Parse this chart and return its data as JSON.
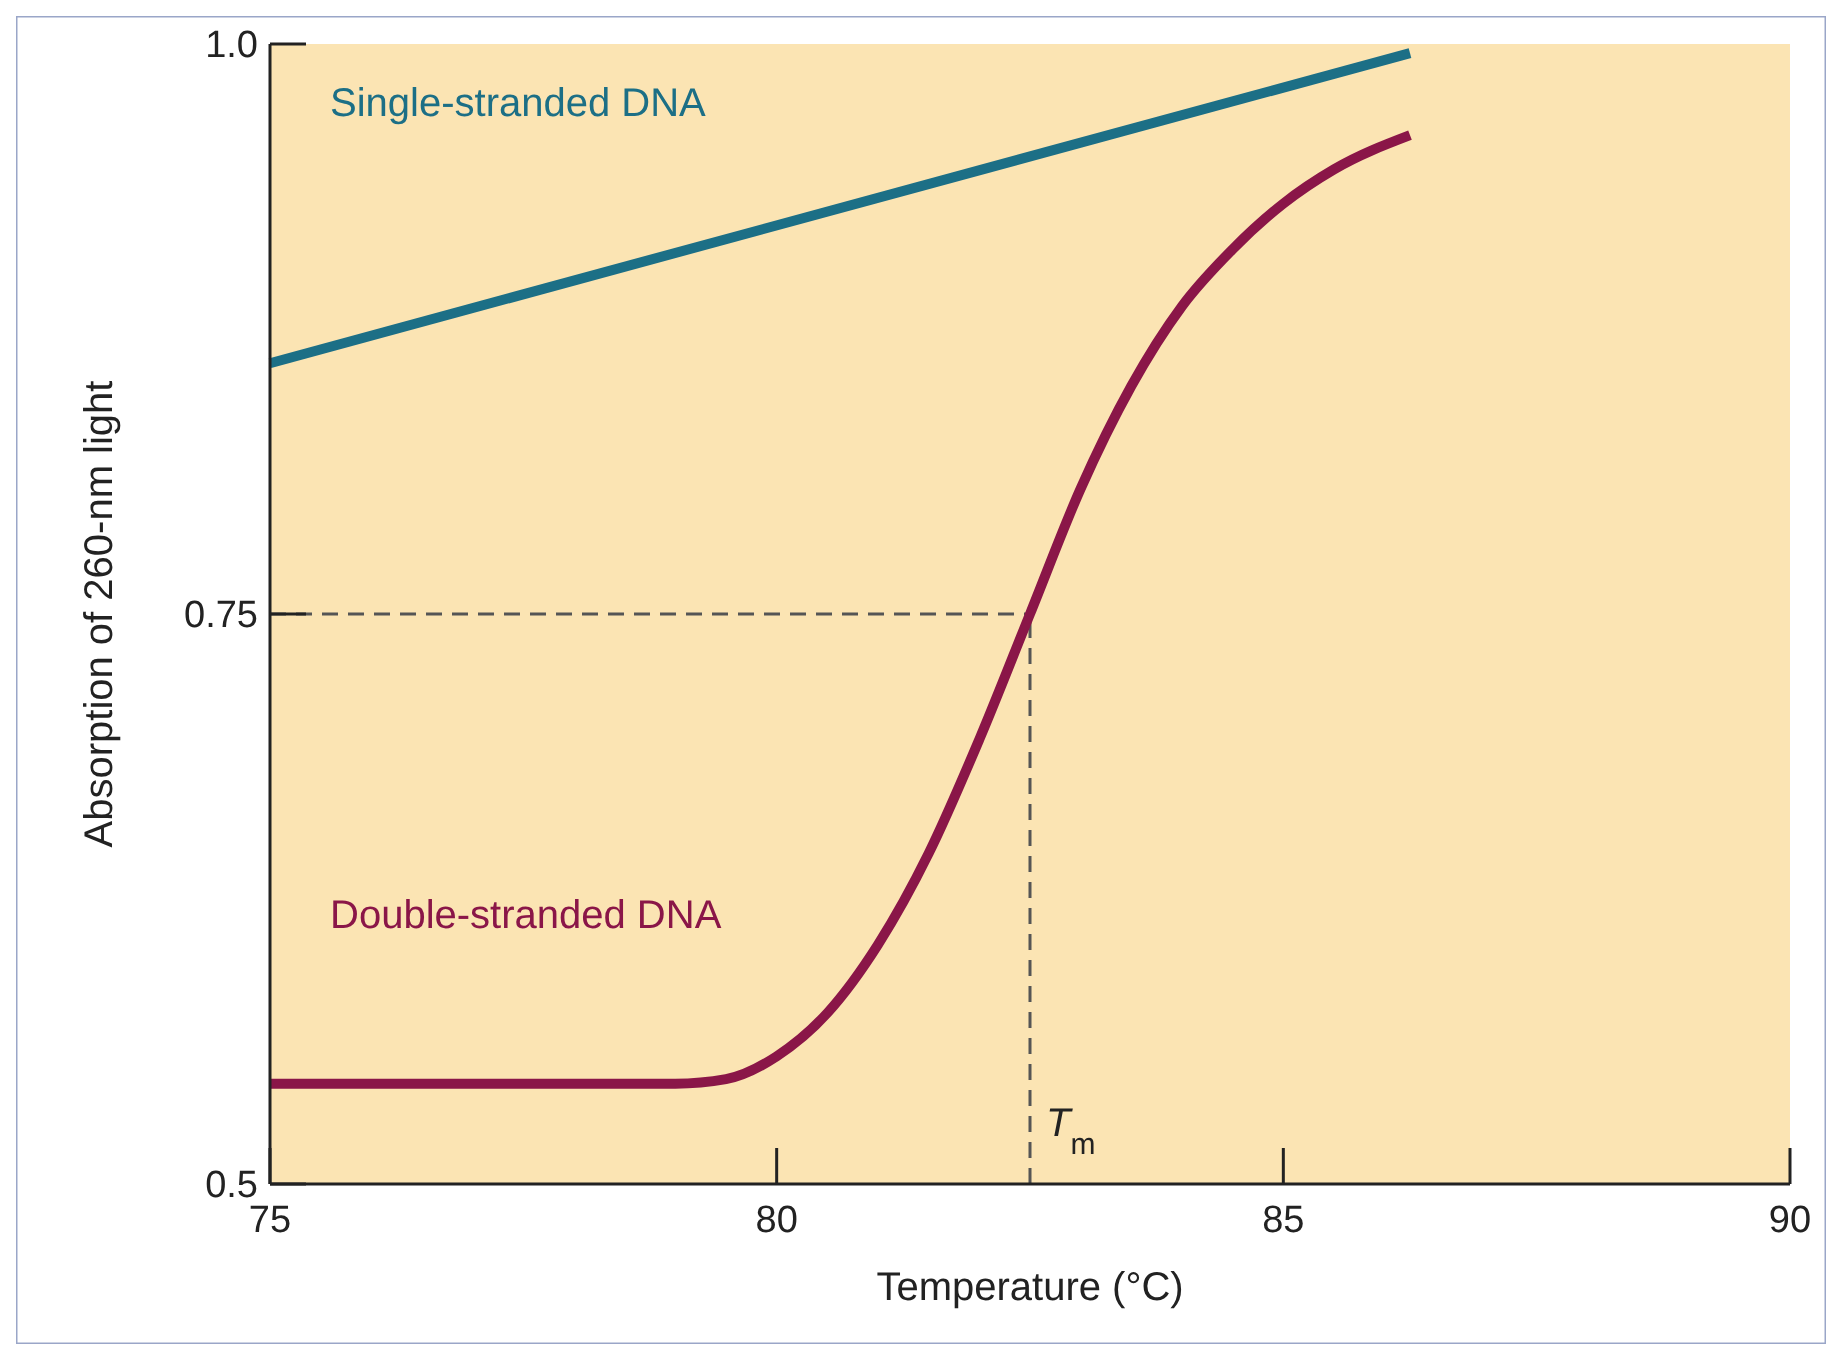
{
  "chart_data": {
    "type": "line",
    "xlabel": "Temperature (°C)",
    "ylabel": "Absorption of 260-nm light",
    "xlim": [
      75,
      90
    ],
    "xticks": [
      75,
      80,
      85,
      90
    ],
    "ylim": [
      0.5,
      1.0
    ],
    "yticks": [
      0.5,
      0.75,
      {
        "value": 1.0,
        "label": "1.0"
      }
    ],
    "grid": false,
    "marker": "none",
    "line_style": "solid",
    "series": [
      {
        "name": "Single-stranded DNA",
        "color": "#1c6f86",
        "x": [
          75,
          86.25
        ],
        "values": [
          0.86,
          0.996
        ]
      },
      {
        "name": "Double-stranded DNA",
        "color": "#8a1648",
        "x": [
          75,
          79,
          79.5,
          80,
          80.5,
          81,
          81.5,
          82,
          82.5,
          83,
          83.5,
          84,
          84.5,
          85,
          85.5,
          86.25
        ],
        "values": [
          0.544,
          0.544,
          0.546,
          0.556,
          0.575,
          0.605,
          0.645,
          0.695,
          0.75,
          0.805,
          0.85,
          0.885,
          0.91,
          0.93,
          0.945,
          0.96
        ]
      }
    ],
    "ref_lines": [
      {
        "axis": "x",
        "value": 82.5,
        "label": "T$_{m}$",
        "line_style": "dashed",
        "color": "#555555"
      },
      {
        "axis": "y",
        "value": 0.75,
        "label": null,
        "line_style": "dashed",
        "color": "#555555"
      }
    ]
  }
}
